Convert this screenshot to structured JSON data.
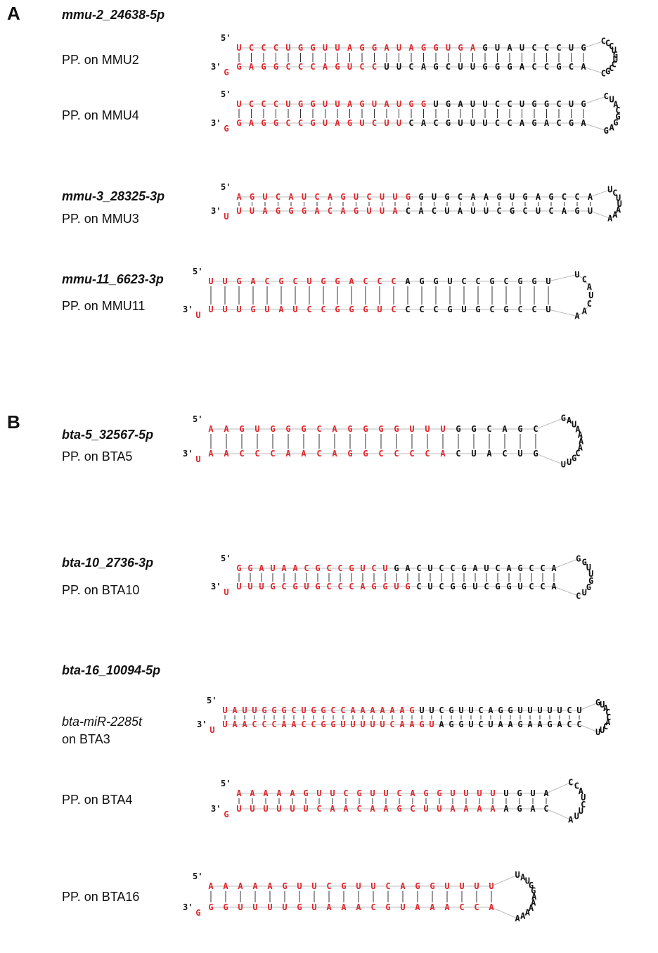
{
  "panels": [
    {
      "letter": "A"
    },
    {
      "letter": "B"
    }
  ],
  "labels": {
    "a1_name": "mmu-2_24638-5p",
    "a1_pp1": "PP. on MMU2",
    "a1_pp2": "PP. on MMU4",
    "a2_name": "mmu-3_28325-3p",
    "a2_pp": "PP. on MMU3",
    "a3_name": "mmu-11_6623-3p",
    "a3_pp": "PP. on MMU11",
    "b1_name": "bta-5_32567-5p",
    "b1_pp": "PP. on BTA5",
    "b2_name": "bta-10_2736-3p",
    "b2_pp": "PP. on BTA10",
    "b3_name": "bta-16_10094-5p",
    "b3_known": "bta-miR-2285t",
    "b3_known_loc": "on BTA3",
    "b3_pp1": "PP. on BTA4",
    "b3_pp2": "PP. on BTA16"
  },
  "strand_end_labels": {
    "five_prime": "5'",
    "three_prime": "3'"
  },
  "colors": {
    "mature": "#e0262b",
    "other": "#111111",
    "backbone": "#bbbbbb"
  },
  "hairpins": [
    {
      "id": "mmu2-mmu2",
      "top": "UCCCUGGUUAGGAUAGGUGAGUAUCCCUGCCCUGUC",
      "bot": "GAGGCCCAGUCCUUCAGCUUGGGACCGCACGC",
      "red_top": 20,
      "red_bot": 12,
      "tail": "G"
    },
    {
      "id": "mmu2-mmu4",
      "top": "UCCCUGGUUAGUAUGGUGAUUCCUGGCUGCUAC",
      "bot": "GAGGCCGUAGUCUUCACGUUUCCAGACGAGAGG",
      "red_top": 16,
      "red_bot": 14,
      "tail": "G"
    },
    {
      "id": "mmu3-mmu3",
      "top": "AGUCAUCAGUCUUGGUGCAAGUGAGCCAUCU",
      "bot": "UUAGGGACAGUUACACUAUUCGCUCAGUAAAU",
      "red_top": 14,
      "red_bot": 13,
      "tail": "U"
    },
    {
      "id": "mmu11-mmu11",
      "top": "UUGACGCUGGACCCAGGUCCGCGGUUCAU",
      "bot": "UUUGUAUCCGGGUCCCCGUGCGCCUAAC",
      "red_top": 14,
      "red_bot": 14,
      "tail": "U"
    },
    {
      "id": "bta5-bta5",
      "top": "AAGUGGGCAGGGGUUUGGCAGCGAU",
      "bot": "AACCCAACAGGCCCCACUACUGUUGCAAAA",
      "red_top": 16,
      "red_bot": 16,
      "tail": "U"
    },
    {
      "id": "bta10-bta10",
      "top": "GGAUAACGCCGUCUGACUCCGAUCAGCCAGGUUG",
      "bot": "UUUGCGUGCCCAGGUGCUCGGUCGGUCCACUG",
      "red_top": 14,
      "red_bot": 16,
      "tail": "U"
    },
    {
      "id": "bta16-bta3",
      "top": "UAUUGGGCUGGCCAAAAAAGUUCGUUCAGGUUUUUCUGUACCA",
      "bot": "UAACCCAACCGGUUUUUCAAGUAGGUCUAAGAAGACCUUC",
      "red_top": 20,
      "red_bot": 22,
      "tail": "U"
    },
    {
      "id": "bta16-bta4",
      "top": "AAAAAGUUCGUUCAGGUUUUUGUACCA",
      "bot": "UUUUUUCAACAAGCUUAAAAAGACAUUCU",
      "red_top": 20,
      "red_bot": 20,
      "tail": "G"
    },
    {
      "id": "bta16-bta16",
      "top": "AAAAAGUUCGUUCAGGUUUUUAU",
      "bot": "GGUUUUGUAAACGUAAACCAAAAAAAGG",
      "red_top": 20,
      "red_bot": 20,
      "tail": "G"
    }
  ]
}
